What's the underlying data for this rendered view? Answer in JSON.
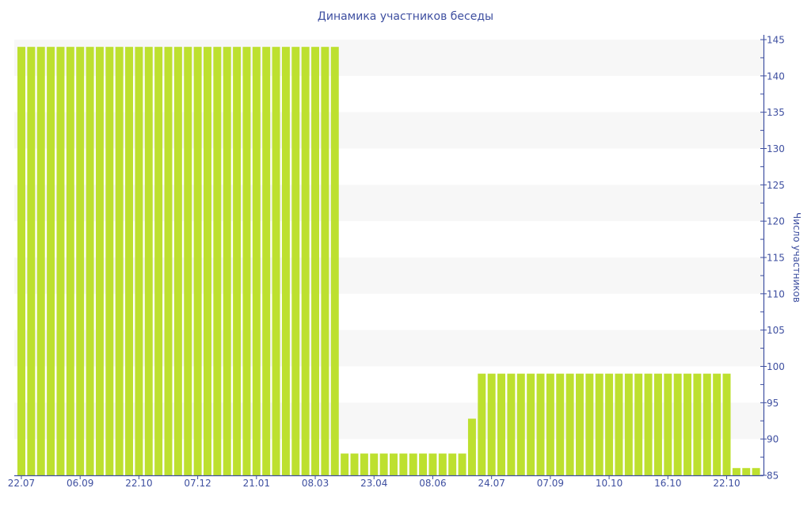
{
  "chart_data": {
    "type": "bar",
    "title": "Динамика участников беседы",
    "xlabel": "",
    "ylabel": "Число участников",
    "ylim": [
      85,
      145
    ],
    "yticks": [
      85,
      90,
      95,
      100,
      105,
      110,
      115,
      120,
      125,
      130,
      135,
      140,
      145
    ],
    "y_axis_position": "right",
    "grid": "alternating horizontal bands",
    "bar_color": "#bde02f",
    "axis_color": "#3e4fa0",
    "band_color": "#f7f7f7",
    "x_tick_labels": [
      "22.07",
      "06.09",
      "22.10",
      "07.12",
      "21.01",
      "08.03",
      "23.04",
      "08.06",
      "24.07",
      "07.09",
      "10.10",
      "16.10",
      "22.10"
    ],
    "x_tick_every": 6,
    "values": [
      144,
      144,
      144,
      144,
      144,
      144,
      144,
      144,
      144,
      144,
      144,
      144,
      144,
      144,
      144,
      144,
      144,
      144,
      144,
      144,
      144,
      144,
      144,
      144,
      144,
      144,
      144,
      144,
      144,
      144,
      144,
      144,
      144,
      88,
      88,
      88,
      88,
      88,
      88,
      88,
      88,
      88,
      88,
      88,
      88,
      88,
      92.8,
      99,
      99,
      99,
      99,
      99,
      99,
      99,
      99,
      99,
      99,
      99,
      99,
      99,
      99,
      99,
      99,
      99,
      99,
      99,
      99,
      99,
      99,
      99,
      99,
      99,
      99,
      86,
      86,
      86
    ]
  }
}
